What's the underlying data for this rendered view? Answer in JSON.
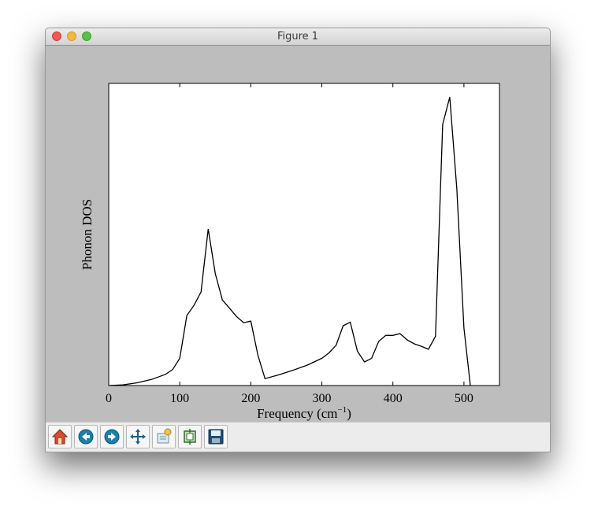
{
  "window": {
    "title": "Figure 1"
  },
  "toolbar": {
    "buttons": [
      {
        "name": "home-button",
        "icon": "home-icon"
      },
      {
        "name": "back-button",
        "icon": "back-arrow-icon"
      },
      {
        "name": "forward-button",
        "icon": "forward-arrow-icon"
      },
      {
        "name": "pan-button",
        "icon": "pan-arrows-icon"
      },
      {
        "name": "zoom-rect-button",
        "icon": "zoom-to-rect-icon"
      },
      {
        "name": "subplots-button",
        "icon": "configure-subplots-icon"
      },
      {
        "name": "save-button",
        "icon": "floppy-disk-icon"
      }
    ]
  },
  "chart_data": {
    "type": "line",
    "title": "",
    "xlabel": "Frequency (cm",
    "xlabel_sup": "−1",
    "xlabel_end": ")",
    "ylabel": "Phonon DOS",
    "xlim": [
      0,
      550
    ],
    "ylim": [
      0,
      1.0
    ],
    "xticks": [
      0,
      100,
      200,
      300,
      400,
      500
    ],
    "yticks_visible": false,
    "grid": false,
    "line_color": "#000000",
    "series": [
      {
        "x": [
          0,
          20,
          40,
          60,
          80,
          90,
          100,
          110,
          120,
          130,
          140,
          150,
          160,
          170,
          180,
          190,
          200,
          210,
          220,
          240,
          260,
          280,
          300,
          310,
          320,
          330,
          340,
          350,
          360,
          370,
          380,
          390,
          400,
          410,
          420,
          430,
          440,
          450,
          460,
          470,
          480,
          490,
          500,
          510
        ],
        "y": [
          0.0,
          0.002,
          0.009,
          0.02,
          0.037,
          0.053,
          0.09,
          0.232,
          0.265,
          0.31,
          0.518,
          0.37,
          0.283,
          0.256,
          0.228,
          0.208,
          0.213,
          0.1,
          0.023,
          0.036,
          0.051,
          0.068,
          0.09,
          0.108,
          0.133,
          0.198,
          0.21,
          0.114,
          0.078,
          0.09,
          0.146,
          0.166,
          0.166,
          0.172,
          0.151,
          0.138,
          0.13,
          0.12,
          0.163,
          0.864,
          0.955,
          0.65,
          0.19,
          -0.02
        ]
      }
    ]
  }
}
